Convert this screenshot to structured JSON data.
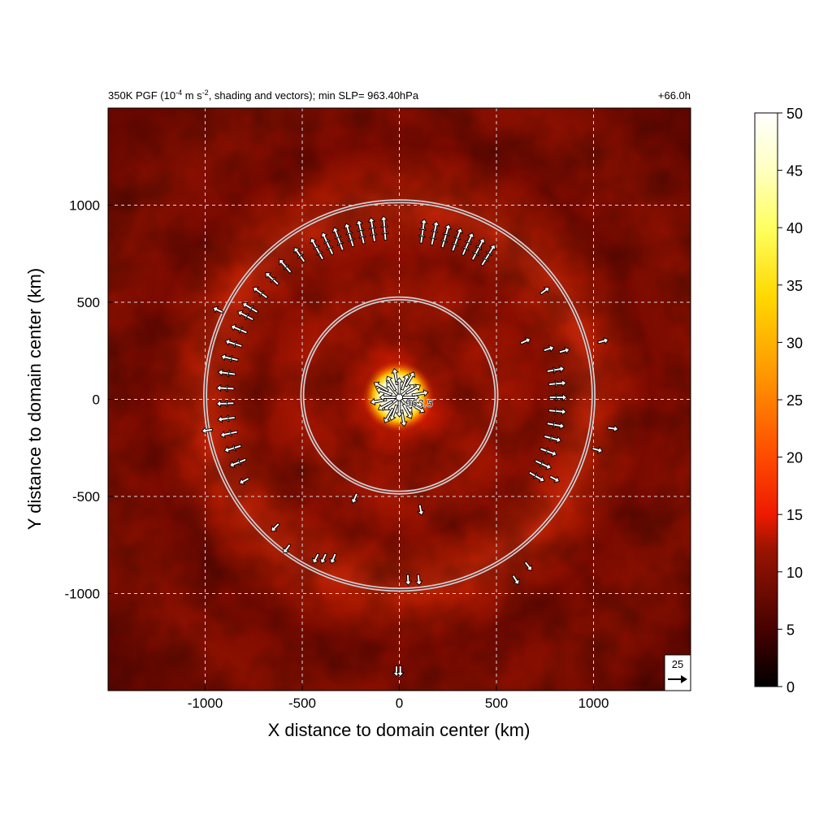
{
  "chart_data": {
    "type": "heatmap",
    "title": "350K PGF (10",
    "title_exp": "-4",
    "title_mid": " m s",
    "title_exp2": "-2",
    "title_tail": ", shading and vectors); min SLP= 963.40hPa",
    "time_label": "+66.0h",
    "xlabel": "X distance to domain center (km)",
    "ylabel": "Y distance to domain center (km)",
    "xlim": [
      -1500,
      1500
    ],
    "ylim": [
      -1500,
      1500
    ],
    "x_ticks": [
      -1000,
      -500,
      0,
      500,
      1000
    ],
    "y_ticks": [
      -1000,
      -500,
      0,
      500,
      1000
    ],
    "grid": true,
    "grid_lines": [
      -1000,
      -500,
      0,
      500,
      1000
    ],
    "colorbar": {
      "min": 0,
      "max": 50,
      "ticks": [
        0,
        5,
        10,
        15,
        20,
        25,
        30,
        35,
        40,
        45,
        50
      ],
      "colormap": [
        "#000000",
        "#3a0000",
        "#6a0a00",
        "#9a1400",
        "#c82000",
        "#ee1a00",
        "#ff4a00",
        "#ff8a00",
        "#ffc000",
        "#ffec30",
        "#ffffb0",
        "#ffffff"
      ]
    },
    "center_label": "963.5",
    "min_slp_hpa": 963.4,
    "range_rings_km": [
      500,
      1000
    ],
    "ring_center_km": [
      0,
      20
    ],
    "reference_vector": {
      "label": "25",
      "magnitude": 25
    },
    "field_description": "Ring of enhanced PGF around vortex center; peak values near 50 at core, background mostly 5-15",
    "arrow_groups": [
      {
        "name": "core",
        "center_km": [
          0,
          10
        ],
        "count": 24,
        "direction": "outward"
      },
      {
        "name": "north-arc",
        "approx_radius_km": 900,
        "sector": "north",
        "direction": "outward"
      },
      {
        "name": "west-arc",
        "approx_radius_km": 950,
        "sector": "west",
        "direction": "outward"
      },
      {
        "name": "east-arc",
        "approx_radius_km": 830,
        "sector": "east",
        "direction": "outward"
      }
    ]
  }
}
